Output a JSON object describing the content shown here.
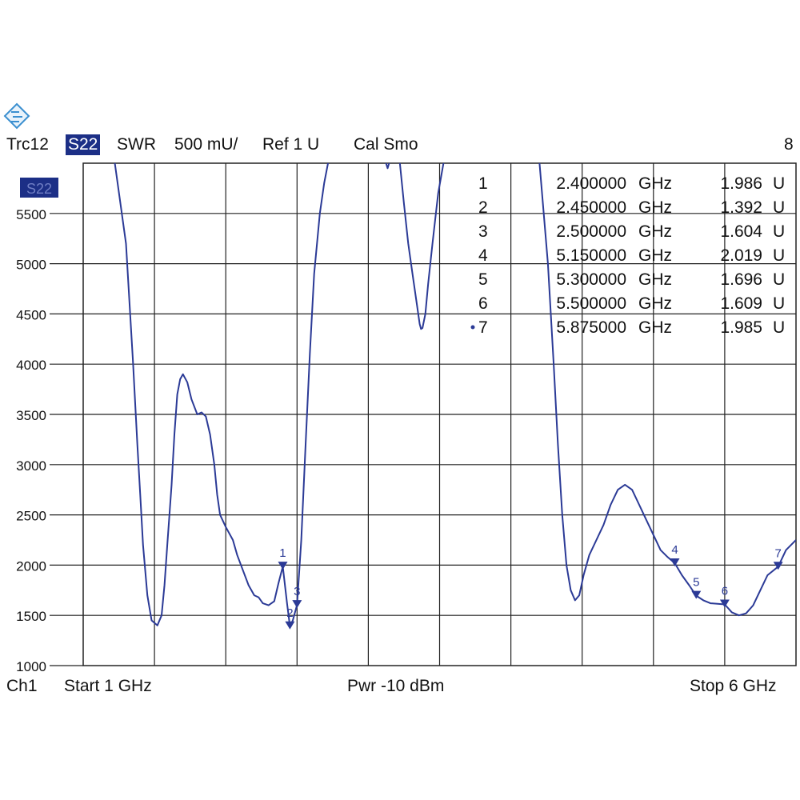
{
  "header": {
    "trace": "Trc12",
    "param": "S22",
    "format": "SWR",
    "scale": "500 mU/",
    "ref": "Ref 1 U",
    "cal": "Cal Smo",
    "channel_count": "8"
  },
  "footer": {
    "channel": "Ch1",
    "start": "Start  1 GHz",
    "power": "Pwr  -10 dBm",
    "stop": "Stop  6 GHz"
  },
  "colors": {
    "trace": "#2b3a96",
    "grid": "#222222",
    "badge": "#1c2f86"
  },
  "chart_data": {
    "type": "line",
    "trace_label": "S22",
    "xlim": [
      1,
      6
    ],
    "ylim": [
      1000,
      6000
    ],
    "yticks": [
      "1000",
      "1500",
      "2000",
      "2500",
      "3000",
      "3500",
      "4000",
      "4500",
      "5000",
      "5500"
    ],
    "x_divisions": 10,
    "series": [
      {
        "x": [
          1.22,
          1.3,
          1.35,
          1.38,
          1.4,
          1.42,
          1.45,
          1.48,
          1.52,
          1.55,
          1.57,
          1.59,
          1.62,
          1.64,
          1.66,
          1.68,
          1.7,
          1.73,
          1.76,
          1.8,
          1.83,
          1.86,
          1.89,
          1.92,
          1.94,
          1.96,
          2.0,
          2.05,
          2.08,
          2.12,
          2.16,
          2.2,
          2.23,
          2.26,
          2.3,
          2.34,
          2.37,
          2.4,
          2.43,
          2.45,
          2.47,
          2.5,
          2.53,
          2.56,
          2.59,
          2.62,
          2.66,
          2.69,
          2.72
        ],
        "y": [
          6020,
          5200,
          4000,
          3200,
          2700,
          2200,
          1700,
          1450,
          1400,
          1500,
          1800,
          2200,
          2800,
          3300,
          3700,
          3850,
          3900,
          3820,
          3650,
          3500,
          3520,
          3480,
          3300,
          3000,
          2700,
          2500,
          2380,
          2250,
          2100,
          1950,
          1800,
          1700,
          1680,
          1620,
          1600,
          1640,
          1820,
          1986,
          1620,
          1392,
          1450,
          1604,
          2250,
          3200,
          4100,
          4900,
          5500,
          5800,
          6020
        ]
      },
      {
        "x": [
          3.12,
          3.135,
          3.15
        ],
        "y": [
          6020,
          5950,
          6020
        ]
      },
      {
        "x": [
          3.22,
          3.25,
          3.28,
          3.31,
          3.34,
          3.36,
          3.37,
          3.38,
          3.4,
          3.42,
          3.45,
          3.49,
          3.53
        ],
        "y": [
          6020,
          5600,
          5200,
          4900,
          4600,
          4400,
          4350,
          4360,
          4500,
          4800,
          5200,
          5700,
          6020
        ]
      },
      {
        "x": [
          4.2,
          4.26,
          4.3,
          4.33,
          4.36,
          4.39,
          4.42,
          4.45,
          4.48,
          4.51,
          4.55,
          4.6,
          4.65,
          4.7,
          4.75,
          4.8,
          4.85,
          4.9,
          4.95,
          5.0,
          5.05,
          5.1,
          5.15,
          5.2,
          5.25,
          5.3,
          5.35,
          5.4,
          5.45,
          5.5,
          5.55,
          5.6,
          5.65,
          5.7,
          5.75,
          5.8,
          5.875,
          5.93,
          6.0
        ],
        "y": [
          6020,
          5000,
          4000,
          3200,
          2500,
          2000,
          1750,
          1650,
          1700,
          1900,
          2100,
          2250,
          2400,
          2600,
          2750,
          2800,
          2750,
          2600,
          2450,
          2300,
          2150,
          2080,
          2019,
          1900,
          1800,
          1696,
          1650,
          1620,
          1615,
          1609,
          1530,
          1500,
          1520,
          1600,
          1750,
          1900,
          1985,
          2150,
          2250
        ]
      }
    ],
    "markers": [
      {
        "label": "1",
        "freq": "2.400000",
        "unit": "GHz",
        "value": "1.986",
        "vunit": "U",
        "x": 2.4,
        "y": 1986
      },
      {
        "label": "2",
        "freq": "2.450000",
        "unit": "GHz",
        "value": "1.392",
        "vunit": "U",
        "x": 2.45,
        "y": 1392
      },
      {
        "label": "3",
        "freq": "2.500000",
        "unit": "GHz",
        "value": "1.604",
        "vunit": "U",
        "x": 2.5,
        "y": 1604
      },
      {
        "label": "4",
        "freq": "5.150000",
        "unit": "GHz",
        "value": "2.019",
        "vunit": "U",
        "x": 5.15,
        "y": 2019
      },
      {
        "label": "5",
        "freq": "5.300000",
        "unit": "GHz",
        "value": "1.696",
        "vunit": "U",
        "x": 5.3,
        "y": 1696
      },
      {
        "label": "6",
        "freq": "5.500000",
        "unit": "GHz",
        "value": "1.609",
        "vunit": "U",
        "x": 5.5,
        "y": 1609
      },
      {
        "label": "7",
        "freq": "5.875000",
        "unit": "GHz",
        "value": "1.985",
        "vunit": "U",
        "x": 5.875,
        "y": 1985
      }
    ],
    "active_marker": "7"
  }
}
